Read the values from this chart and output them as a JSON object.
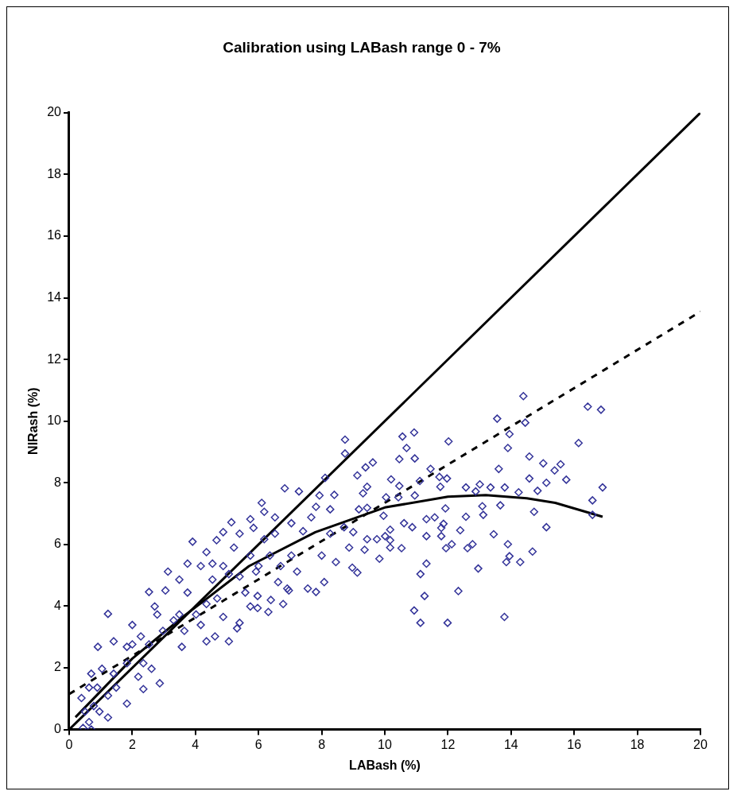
{
  "chart_data": {
    "type": "scatter",
    "title": "Calibration using LABash range 0 - 7%",
    "xlabel": "LABash (%)",
    "ylabel": "NIRash (%)",
    "xlim": [
      0,
      20
    ],
    "ylim": [
      0,
      20
    ],
    "xticks": [
      0,
      2,
      4,
      6,
      8,
      10,
      12,
      14,
      16,
      18,
      20
    ],
    "yticks": [
      0,
      2,
      4,
      6,
      8,
      10,
      12,
      14,
      16,
      18,
      20
    ],
    "grid": false,
    "legend": false,
    "series": [
      {
        "color": "#333399",
        "marker": "diamond",
        "x": [
          14.39,
          16.43,
          16.85,
          13.56,
          14.45,
          13.95,
          12.02,
          16.14,
          13.9,
          14.58,
          15.02,
          15.57,
          15.38,
          15.75,
          13.61,
          14.58,
          15.12,
          16.9,
          16.58,
          16.58,
          14.84,
          14.24,
          13.8,
          13.35,
          13.01,
          12.57,
          12.88,
          13.09,
          13.66,
          14.73,
          13.12,
          12.57,
          12.39,
          11.92,
          11.76,
          11.97,
          11.86,
          11.79,
          12.12,
          11.94,
          12.62,
          12.78,
          13.45,
          13.9,
          15.12,
          14.68,
          13.95,
          13.85,
          14.29,
          12.96,
          12.33,
          13.79,
          11.99,
          8.74,
          8.74,
          8.11,
          6.83,
          7.28,
          10.93,
          10.56,
          10.69,
          10.95,
          10.46,
          9.62,
          9.39,
          9.13,
          10.2,
          11.45,
          11.73,
          11.11,
          9.44,
          9.31,
          10.46,
          8.4,
          7.93,
          10.04,
          10.43,
          10.95,
          9.18,
          9.44,
          9.96,
          10.61,
          10.87,
          11.32,
          11.58,
          11.79,
          10.17,
          9.44,
          9.75,
          10.01,
          10.17,
          11.32,
          10.53,
          9.36,
          9.83,
          10.17,
          9.0,
          8.71,
          8.87,
          9.13,
          8.97,
          11.32,
          11.13,
          11.26,
          10.93,
          11.13,
          8.45,
          8.08,
          7.82,
          7.56,
          8.27,
          8.0,
          7.67,
          7.41,
          7.82,
          8.27,
          6.96,
          6.39,
          6.78,
          6.31,
          5.97,
          5.97,
          6.91,
          6.1,
          5.14,
          5.74,
          4.88,
          3.91,
          4.67,
          2.53,
          1.23,
          2.0,
          5.4,
          5.22,
          4.35,
          4.17,
          3.49,
          3.05,
          3.75,
          4.54,
          5.06,
          5.74,
          5.92,
          5.74,
          5.4,
          5.32,
          5.06,
          4.35,
          4.62,
          4.88,
          3.57,
          3.31,
          2.79,
          2.97,
          2.53,
          2.27,
          1.83,
          1.83,
          0.91,
          1.41,
          2.35,
          2.61,
          2.19,
          2.35,
          2.87,
          1.83,
          1.49,
          1.23,
          1.41,
          1.04,
          0.7,
          0.39,
          0.63,
          0.89,
          1.23,
          0.96,
          0.63,
          0.44,
          0.7,
          0.5,
          0.78,
          3.13,
          2.71,
          2.0,
          4.02,
          3.49,
          3.65,
          4.35,
          4.69,
          4.17,
          5.58,
          5.4,
          4.88,
          3.75,
          4.54,
          5.84,
          6.18,
          6.52,
          6.36,
          6.0,
          6.7,
          7.04,
          7.22,
          6.62,
          6.18,
          6.52,
          7.04
        ],
        "values": [
          10.81,
          10.47,
          10.37,
          10.08,
          9.95,
          9.58,
          9.34,
          9.29,
          9.13,
          8.85,
          8.63,
          8.6,
          8.4,
          8.1,
          8.45,
          8.14,
          8.0,
          7.85,
          7.43,
          6.96,
          7.74,
          7.69,
          7.85,
          7.85,
          7.95,
          7.85,
          7.72,
          7.24,
          7.27,
          7.06,
          6.96,
          6.9,
          6.46,
          7.17,
          7.87,
          8.14,
          6.67,
          6.27,
          6.01,
          5.88,
          5.88,
          6.01,
          6.33,
          6.01,
          6.56,
          5.77,
          5.62,
          5.43,
          5.43,
          5.22,
          4.49,
          3.65,
          3.46,
          9.4,
          8.95,
          8.16,
          7.82,
          7.72,
          9.63,
          9.5,
          9.13,
          8.79,
          8.77,
          8.66,
          8.5,
          8.24,
          8.11,
          8.45,
          8.19,
          8.06,
          7.87,
          7.66,
          7.9,
          7.61,
          7.59,
          7.53,
          7.53,
          7.59,
          7.14,
          7.19,
          6.93,
          6.69,
          6.56,
          6.82,
          6.88,
          6.54,
          6.48,
          6.17,
          6.17,
          6.27,
          6.14,
          6.27,
          5.88,
          5.83,
          5.54,
          5.9,
          6.4,
          6.56,
          5.9,
          5.09,
          5.25,
          5.38,
          5.04,
          4.33,
          3.86,
          3.46,
          5.43,
          4.78,
          4.46,
          4.57,
          6.35,
          5.64,
          6.88,
          6.43,
          7.22,
          7.14,
          4.51,
          4.2,
          4.07,
          3.81,
          3.94,
          4.33,
          4.57,
          7.35,
          6.72,
          6.82,
          6.4,
          6.09,
          6.14,
          4.46,
          3.75,
          3.39,
          6.35,
          5.9,
          5.75,
          5.3,
          4.86,
          4.51,
          4.44,
          4.86,
          5.04,
          5.64,
          5.12,
          3.99,
          3.46,
          3.28,
          2.86,
          2.86,
          3.02,
          3.65,
          2.68,
          3.54,
          3.73,
          3.2,
          2.76,
          3.02,
          2.68,
          2.15,
          2.68,
          2.86,
          2.15,
          1.97,
          1.71,
          1.31,
          1.5,
          0.84,
          1.36,
          1.1,
          1.81,
          1.97,
          1.81,
          1.02,
          1.36,
          1.36,
          0.39,
          0.58,
          0.24,
          0.05,
          0.0,
          0.58,
          0.76,
          5.12,
          3.99,
          2.76,
          3.73,
          3.73,
          3.2,
          4.07,
          4.25,
          3.39,
          4.44,
          4.96,
          5.3,
          5.38,
          5.38,
          6.54,
          6.17,
          6.35,
          5.64,
          5.3,
          5.3,
          5.64,
          5.12,
          4.78,
          7.06,
          6.88,
          6.69
        ]
      },
      {
        "type": "line",
        "color": "#000000",
        "marker": "none",
        "line_style": "solid",
        "x": [
          0,
          20
        ],
        "values": [
          0,
          20
        ]
      },
      {
        "type": "line",
        "color": "#000000",
        "marker": "none",
        "line_style": "dashed",
        "x": [
          0,
          20
        ],
        "values": [
          1.15,
          13.55
        ]
      },
      {
        "type": "line",
        "color": "#000000",
        "marker": "none",
        "line_style": "solid",
        "x": [
          0.2,
          2,
          3.6,
          5.7,
          7.8,
          10,
          12,
          13.2,
          14.5,
          15.4,
          16.9
        ],
        "values": [
          0.4,
          2.3,
          3.65,
          5.3,
          6.4,
          7.2,
          7.55,
          7.6,
          7.5,
          7.35,
          6.9
        ]
      }
    ]
  }
}
